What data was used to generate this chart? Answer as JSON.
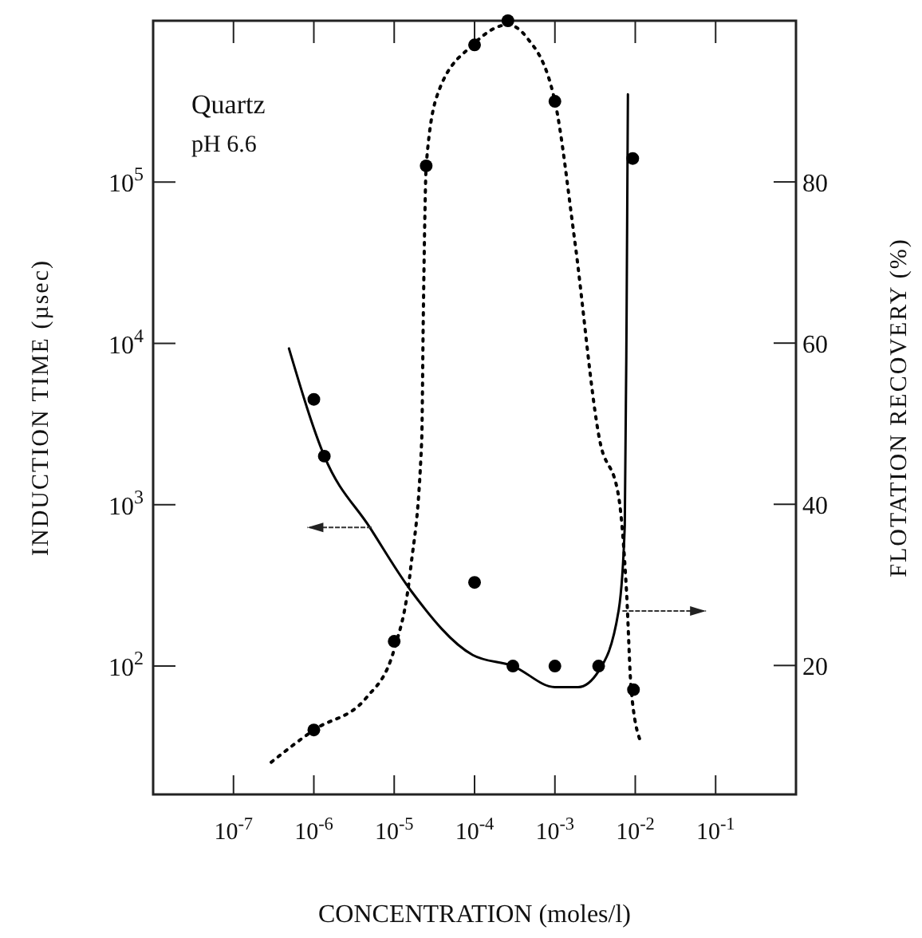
{
  "chart_data": {
    "type": "scatter",
    "xlabel": "CONCENTRATION (moles/l)",
    "ylabel": "INDUCTION TIME (µsec)",
    "y2label": "FLOTATION RECOVERY (%)",
    "annotations": [
      "Quartz",
      "pH 6.6"
    ],
    "log": "xy",
    "grid": false,
    "marker": "circle",
    "xlim": [
      1e-08,
      1
    ],
    "xticks": [
      {
        "value": 1e-07,
        "label": "10$^{-7}$"
      },
      {
        "value": 1e-06,
        "label": "10$^{-6}$"
      },
      {
        "value": 1e-05,
        "label": "10$^{-5}$"
      },
      {
        "value": 0.0001,
        "label": "10$^{-4}$"
      },
      {
        "value": 0.001,
        "label": "10$^{-3}$"
      },
      {
        "value": 0.01,
        "label": "10$^{-2}$"
      },
      {
        "value": 0.1,
        "label": "10$^{-1}$"
      }
    ],
    "ylim": [
      16,
      1000000
    ],
    "yticks": [
      {
        "value": 100,
        "label": "10$^{2}$"
      },
      {
        "value": 1000,
        "label": "10$^{3}$"
      },
      {
        "value": 10000,
        "label": "10$^{4}$"
      },
      {
        "value": 100000,
        "label": "10$^{5}$"
      }
    ],
    "y2lim": [
      4,
      100
    ],
    "y2ticks": [
      20,
      40,
      60,
      80
    ],
    "series": [
      {
        "color": "#000000",
        "x": [
          1e-06,
          1.35e-06,
          0.0001,
          0.0003,
          0.001,
          0.0035,
          0.0093
        ],
        "values": [
          4500,
          2000,
          330,
          100,
          100,
          100,
          140000
        ]
      },
      {
        "color": "#000000",
        "axis": "y2",
        "x": [
          1e-06,
          1e-05,
          2.5e-05,
          0.0001,
          0.00026,
          0.001,
          0.0095
        ],
        "values": [
          12,
          23,
          82,
          97,
          100,
          90,
          17
        ]
      },
      {
        "type": "line",
        "color": "#000000",
        "line_style": "solid",
        "marker": "none",
        "x": [
          4.9e-07,
          1.35e-06,
          5e-06,
          1.6e-05,
          9.5e-05,
          0.0003,
          0.001,
          0.00195,
          0.0035,
          0.0062,
          0.0074,
          0.0078,
          0.0081
        ],
        "values": [
          9300,
          2000,
          720,
          295,
          117,
          100,
          74,
          74,
          93,
          220,
          740,
          15000,
          350000
        ]
      },
      {
        "type": "line",
        "color": "#000000",
        "line_style": "dotted",
        "marker": "none",
        "axis": "y2",
        "x": [
          2.95e-07,
          1e-06,
          4.5e-06,
          1e-05,
          1.6e-05,
          2.2e-05,
          2.3e-05,
          2.4e-05,
          2.5e-05,
          3.5e-05,
          9.5e-05,
          0.00026,
          0.00044,
          0.001,
          0.00175,
          0.0036,
          0.0062,
          0.0078,
          0.0089,
          0.0117
        ],
        "values": [
          8,
          12,
          16,
          22,
          32,
          48,
          63,
          75,
          82,
          91,
          97,
          99.5,
          98,
          90,
          73,
          48,
          41,
          29,
          17,
          10.5
        ]
      }
    ]
  }
}
